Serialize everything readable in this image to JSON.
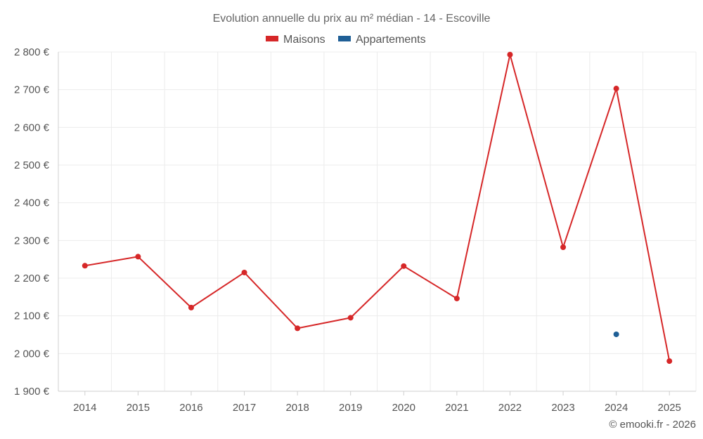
{
  "chart_data": {
    "type": "line",
    "title": "Evolution annuelle du prix au m² médian - 14 - Escoville",
    "categories": [
      "2014",
      "2015",
      "2016",
      "2017",
      "2018",
      "2019",
      "2020",
      "2021",
      "2022",
      "2023",
      "2024",
      "2025"
    ],
    "series": [
      {
        "name": "Maisons",
        "color": "#d62728",
        "values": [
          2233,
          2257,
          2122,
          2215,
          2067,
          2095,
          2232,
          2146,
          2793,
          2282,
          2703,
          1980
        ]
      },
      {
        "name": "Appartements",
        "color": "#1f5f96",
        "values": [
          null,
          null,
          null,
          null,
          null,
          null,
          null,
          null,
          null,
          null,
          2051,
          null
        ]
      }
    ],
    "y_ticks": [
      "1 900 €",
      "2 000 €",
      "2 100 €",
      "2 200 €",
      "2 300 €",
      "2 400 €",
      "2 500 €",
      "2 600 €",
      "2 700 €",
      "2 800 €"
    ],
    "y_tick_values": [
      1900,
      2000,
      2100,
      2200,
      2300,
      2400,
      2500,
      2600,
      2700,
      2800
    ],
    "ylim": [
      1900,
      2800
    ],
    "grid": true,
    "legend": "top-center",
    "credit": "© emooki.fr - 2026"
  }
}
